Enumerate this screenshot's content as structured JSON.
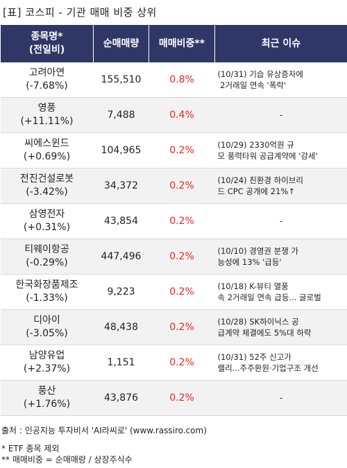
{
  "title": "[표] 코스피 - 기관 매매 비중 상위",
  "headers": [
    "종목명*\n(전일비)",
    "순매매량",
    "매매비중**",
    "최근 이슈"
  ],
  "rows": [
    {
      "name": "고려아연",
      "change": "(-7.68%)",
      "volume": "155,510",
      "ratio": "0.8%",
      "issue": "(10/31) 기습 유상증자에\n 2거래일 연속 '폭락'"
    },
    {
      "name": "영풍",
      "change": "(+11.11%)",
      "volume": "7,488",
      "ratio": "0.4%",
      "issue": "-"
    },
    {
      "name": "씨에스윈드",
      "change": "(+0.69%)",
      "volume": "104,965",
      "ratio": "0.2%",
      "issue": "(10/29) 2330억원 규\n모 풍력타워 공급계약에 '강세'"
    },
    {
      "name": "전진건설로봇",
      "change": "(-3.42%)",
      "volume": "34,372",
      "ratio": "0.2%",
      "issue": "(10/24) 친환경 하이브리\n드 CPC 공개에 21%↑"
    },
    {
      "name": "삼영전자",
      "change": "(+0.31%)",
      "volume": "43,854",
      "ratio": "0.2%",
      "issue": "-"
    },
    {
      "name": "티웨이항공",
      "change": "(-0.29%)",
      "volume": "447,496",
      "ratio": "0.2%",
      "issue": "(10/10) 경영권 분쟁 가\n능성에 13% '급등'"
    },
    {
      "name": "한국화장품제조",
      "change": "(-1.33%)",
      "volume": "9,223",
      "ratio": "0.2%",
      "issue": "(10/18) K-뷰티 열풍\n속 2거래일 연속 급등... 글로벌"
    },
    {
      "name": "디아이",
      "change": "(-3.05%)",
      "volume": "48,438",
      "ratio": "0.2%",
      "issue": "(10/28) SK하이닉스 공\n급계약 체결에도 5%대 하락"
    },
    {
      "name": "남양유업",
      "change": "(+2.37%)",
      "volume": "1,151",
      "ratio": "0.2%",
      "issue": "(10/31) 52주 신고가\n랠리...주주환원·기업구조 개선"
    },
    {
      "name": "풍산",
      "change": "(+1.76%)",
      "volume": "43,876",
      "ratio": "0.2%",
      "issue": "-"
    }
  ],
  "source": "출처 : 인공지능 투자비서 'AI라씨로' (www.rassiro.com)",
  "notes": [
    "* ETF 종목 제외",
    "** 매매비중 = 순매매량 / 상장주식수"
  ],
  "colors": {
    "header_bg": "#2f3766",
    "ratio_text": "#e8251e",
    "shade": "#f2f2f2"
  }
}
